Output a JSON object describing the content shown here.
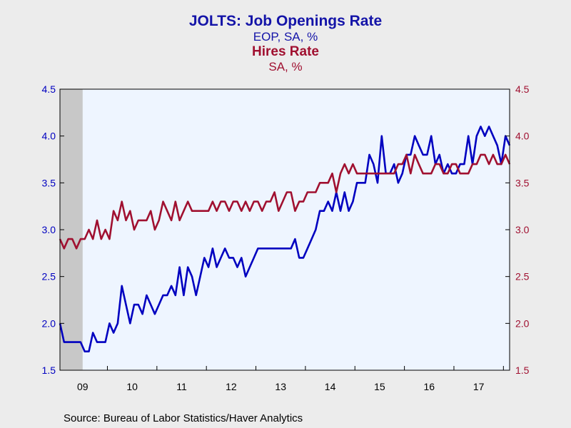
{
  "header": {
    "title1": "JOLTS: Job Openings Rate",
    "subtitle1": "EOP, SA, %",
    "title2": "Hires Rate",
    "subtitle2": "SA, %"
  },
  "footer": {
    "source": "Source:  Bureau of Labor Statistics/Haver Analytics"
  },
  "colors": {
    "series1": "#0000c0",
    "series2": "#a01030",
    "plot_bg": "#eef5ff",
    "recession": "#c8c8c8"
  },
  "chart_data": {
    "type": "line",
    "x_start": "2009-01",
    "x_unit": "month",
    "x_ticks": [
      "09",
      "10",
      "11",
      "12",
      "13",
      "14",
      "15",
      "16",
      "17"
    ],
    "ylim": [
      1.5,
      4.5
    ],
    "y_ticks": [
      "1.5",
      "2.0",
      "2.5",
      "3.0",
      "3.5",
      "4.0",
      "4.5"
    ],
    "y2lim": [
      1.5,
      4.5
    ],
    "y2_ticks": [
      "1.5",
      "2.0",
      "2.5",
      "3.0",
      "3.5",
      "4.0",
      "4.5"
    ],
    "shaded_periods": [
      [
        "2009-01",
        "2009-06"
      ]
    ],
    "grid": false,
    "series": [
      {
        "name": "JOLTS: Job Openings Rate",
        "axis": "left",
        "values": [
          2.0,
          1.8,
          1.8,
          1.8,
          1.8,
          1.8,
          1.7,
          1.7,
          1.9,
          1.8,
          1.8,
          1.8,
          2.0,
          1.9,
          2.0,
          2.4,
          2.2,
          2.0,
          2.2,
          2.2,
          2.1,
          2.3,
          2.2,
          2.1,
          2.2,
          2.3,
          2.3,
          2.4,
          2.3,
          2.6,
          2.3,
          2.6,
          2.5,
          2.3,
          2.5,
          2.7,
          2.6,
          2.8,
          2.6,
          2.7,
          2.8,
          2.7,
          2.7,
          2.6,
          2.7,
          2.5,
          2.6,
          2.7,
          2.8,
          2.8,
          2.8,
          2.8,
          2.8,
          2.8,
          2.8,
          2.8,
          2.8,
          2.9,
          2.7,
          2.7,
          2.8,
          2.9,
          3.0,
          3.2,
          3.2,
          3.3,
          3.2,
          3.4,
          3.2,
          3.4,
          3.2,
          3.3,
          3.5,
          3.5,
          3.5,
          3.8,
          3.7,
          3.5,
          4.0,
          3.6,
          3.6,
          3.7,
          3.5,
          3.6,
          3.8,
          3.8,
          4.0,
          3.9,
          3.8,
          3.8,
          4.0,
          3.7,
          3.8,
          3.6,
          3.7,
          3.6,
          3.6,
          3.7,
          3.7,
          4.0,
          3.7,
          4.0,
          4.1,
          4.0,
          4.1,
          4.0,
          3.9,
          3.7,
          4.0,
          3.9
        ]
      },
      {
        "name": "Hires Rate",
        "axis": "right",
        "values": [
          2.9,
          2.8,
          2.9,
          2.9,
          2.8,
          2.9,
          2.9,
          3.0,
          2.9,
          3.1,
          2.9,
          3.0,
          2.9,
          3.2,
          3.1,
          3.3,
          3.1,
          3.2,
          3.0,
          3.1,
          3.1,
          3.1,
          3.2,
          3.0,
          3.1,
          3.3,
          3.2,
          3.1,
          3.3,
          3.1,
          3.2,
          3.3,
          3.2,
          3.2,
          3.2,
          3.2,
          3.2,
          3.3,
          3.2,
          3.3,
          3.3,
          3.2,
          3.3,
          3.3,
          3.2,
          3.3,
          3.2,
          3.3,
          3.3,
          3.2,
          3.3,
          3.3,
          3.4,
          3.2,
          3.3,
          3.4,
          3.4,
          3.2,
          3.3,
          3.3,
          3.4,
          3.4,
          3.4,
          3.5,
          3.5,
          3.5,
          3.6,
          3.4,
          3.6,
          3.7,
          3.6,
          3.7,
          3.6,
          3.6,
          3.6,
          3.6,
          3.6,
          3.6,
          3.6,
          3.6,
          3.6,
          3.6,
          3.7,
          3.7,
          3.8,
          3.6,
          3.8,
          3.7,
          3.6,
          3.6,
          3.6,
          3.7,
          3.7,
          3.6,
          3.6,
          3.7,
          3.7,
          3.6,
          3.6,
          3.6,
          3.7,
          3.7,
          3.8,
          3.8,
          3.7,
          3.8,
          3.7,
          3.7,
          3.8,
          3.7
        ]
      }
    ]
  }
}
